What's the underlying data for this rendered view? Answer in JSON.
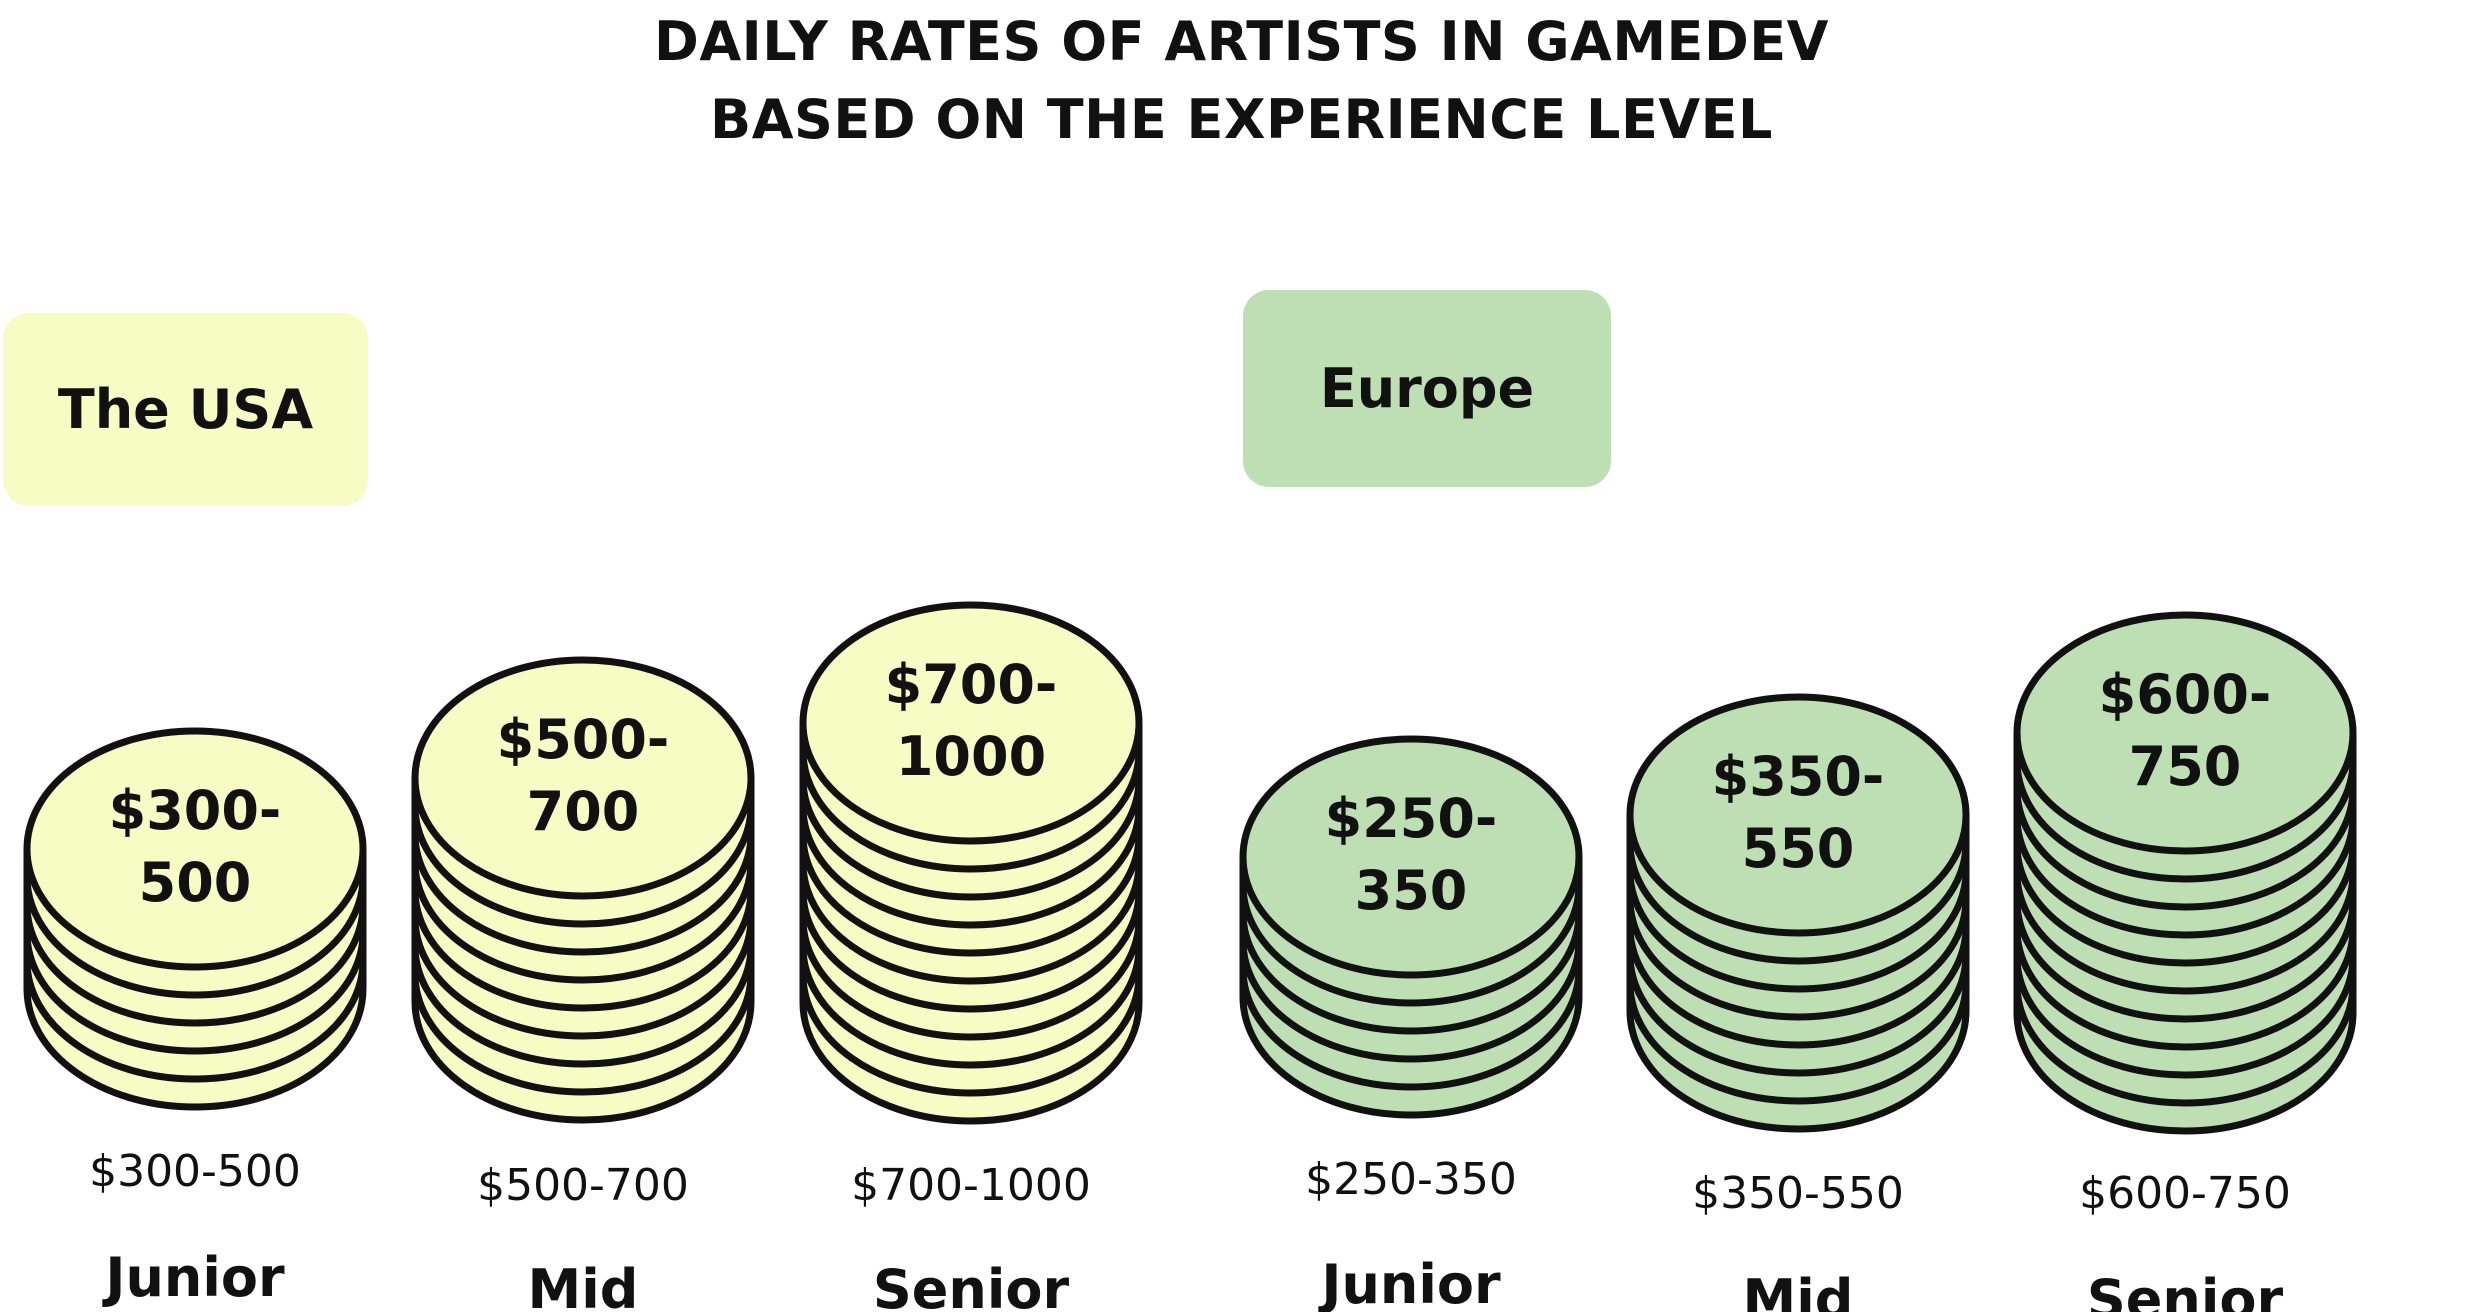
{
  "title_line1": "DAILY RATES OF ARTISTS IN GAMEDEV",
  "title_line2": "BASED ON THE EXPERIENCE LEVEL",
  "colors": {
    "usa": "#f7fbc4",
    "europe": "#bedfb3",
    "outline": "#111111"
  },
  "chart_data": {
    "type": "bar",
    "title": "DAILY RATES OF ARTISTS IN GAMEDEV BASED ON THE EXPERIENCE LEVEL",
    "groups": [
      {
        "name": "The USA",
        "bars": [
          {
            "level": "Junior",
            "top_label_1": "$300-",
            "top_label_2": "500",
            "range_label": "$300-500",
            "min": 300,
            "max": 500,
            "coins": 5
          },
          {
            "level": "Mid",
            "top_label_1": "$500-",
            "top_label_2": "700",
            "range_label": "$500-700",
            "min": 500,
            "max": 700,
            "coins": 8
          },
          {
            "level": "Senior",
            "top_label_1": "$700-",
            "top_label_2": "1000",
            "range_label": "$700-1000",
            "min": 700,
            "max": 1000,
            "coins": 10
          }
        ]
      },
      {
        "name": "Europe",
        "bars": [
          {
            "level": "Junior",
            "top_label_1": "$250-",
            "top_label_2": "350",
            "range_label": "$250-350",
            "min": 250,
            "max": 350,
            "coins": 5
          },
          {
            "level": "Mid",
            "top_label_1": "$350-",
            "top_label_2": "550",
            "range_label": "$350-550",
            "min": 350,
            "max": 550,
            "coins": 7
          },
          {
            "level": "Senior",
            "top_label_1": "$600-",
            "top_label_2": "750",
            "range_label": "$600-750",
            "min": 600,
            "max": 750,
            "coins": 10
          }
        ]
      }
    ]
  }
}
